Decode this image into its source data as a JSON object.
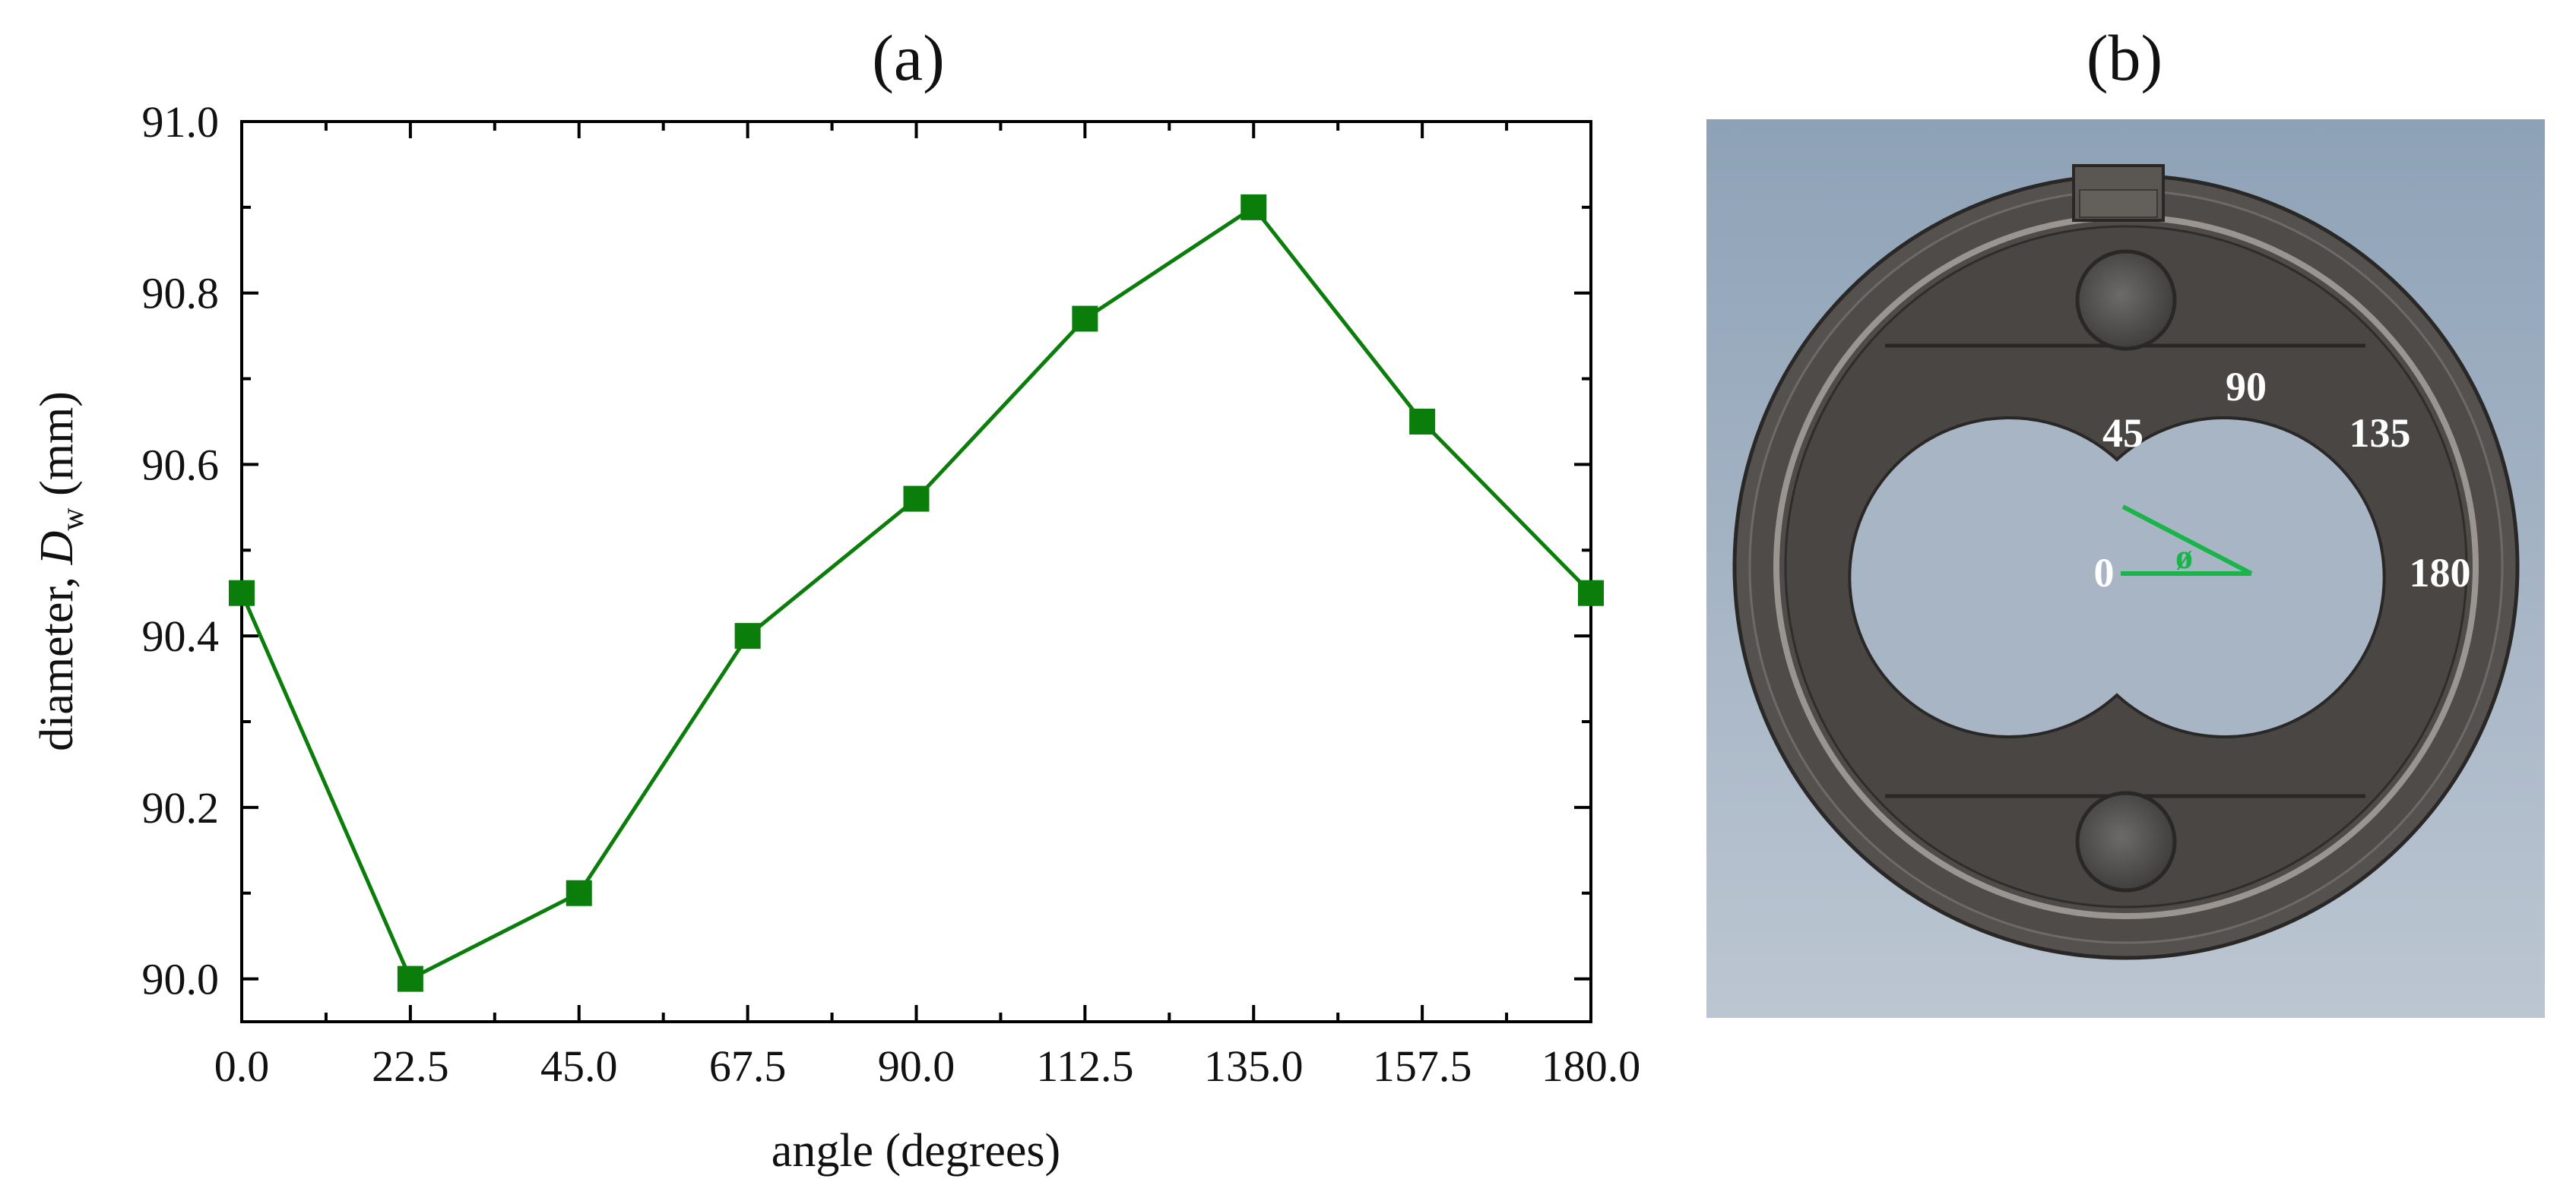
{
  "panels": {
    "a_label": "(a)",
    "b_label": "(b)"
  },
  "chart_data": {
    "type": "line",
    "title": "",
    "xlabel": "angle (degrees)",
    "ylabel_prefix": "diameter, ",
    "ylabel_symbol": "D",
    "ylabel_subscript": "w",
    "ylabel_unit": " (mm)",
    "x": [
      0.0,
      22.5,
      45.0,
      67.5,
      90.0,
      112.5,
      135.0,
      157.5,
      180.0
    ],
    "series": [
      {
        "values": [
          90.45,
          90.0,
          90.1,
          90.4,
          90.56,
          90.77,
          90.9,
          90.65,
          90.45
        ]
      }
    ],
    "xlim": [
      0,
      180
    ],
    "ylim": [
      89.95,
      91.0
    ],
    "x_ticks": [
      0.0,
      22.5,
      45.0,
      67.5,
      90.0,
      112.5,
      135.0,
      157.5,
      180.0
    ],
    "x_tick_labels": [
      "0.0",
      "22.5",
      "45.0",
      "67.5",
      "90.0",
      "112.5",
      "135.0",
      "157.5",
      "180.0"
    ],
    "y_ticks": [
      90.0,
      90.2,
      90.4,
      90.6,
      90.8,
      91.0
    ],
    "y_tick_labels": [
      "90.0",
      "90.2",
      "90.4",
      "90.6",
      "90.8",
      "91.0"
    ],
    "grid": false,
    "marker": "square",
    "color": "#0a7d0a"
  },
  "diagram": {
    "angle_labels": [
      "0",
      "45",
      "90",
      "135",
      "180"
    ],
    "phi_symbol": "ø",
    "line_color": "#19b44a"
  }
}
